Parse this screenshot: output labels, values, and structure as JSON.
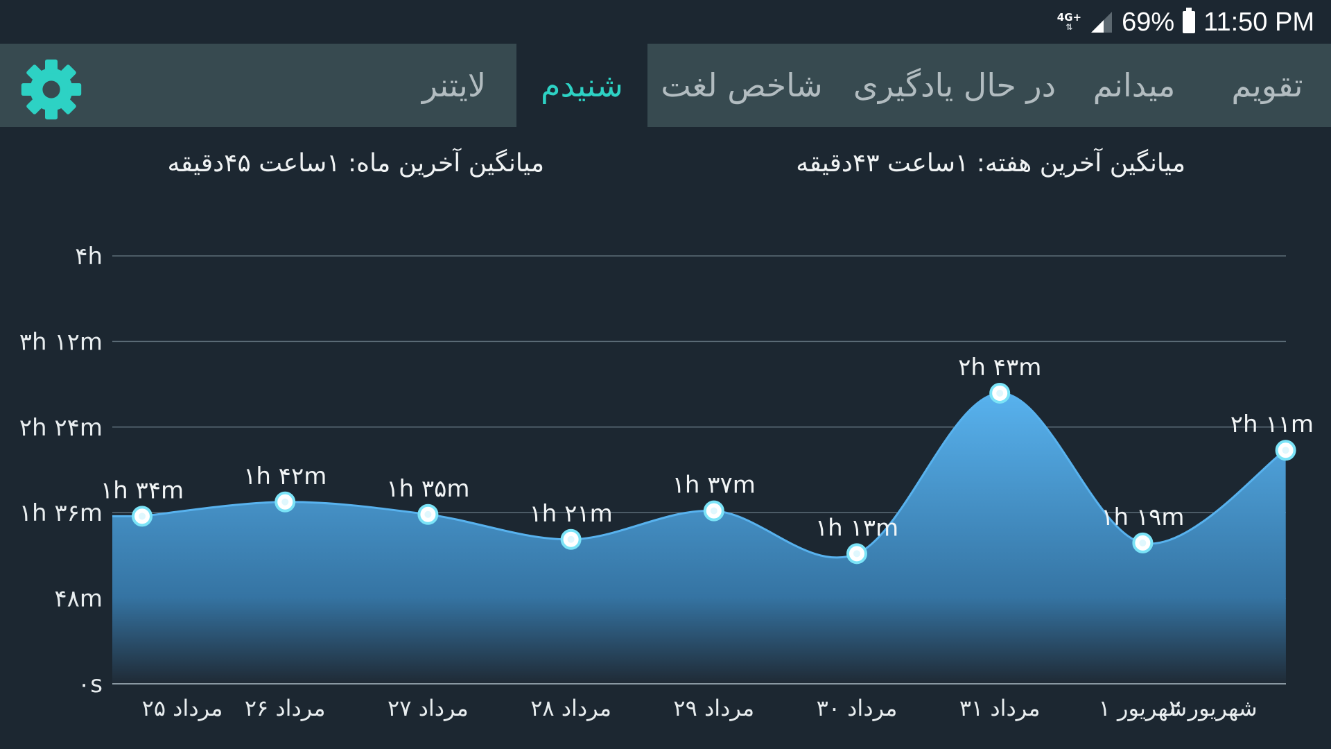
{
  "status_bar": {
    "network": "4G+",
    "battery": "69%",
    "time": "11:50 PM"
  },
  "tabs": [
    {
      "label": "تقویم",
      "active": false
    },
    {
      "label": "میدانم",
      "active": false
    },
    {
      "label": "در حال یادگیری",
      "active": false
    },
    {
      "label": "شاخص لغت",
      "active": false
    },
    {
      "label": "شنیدم",
      "active": true
    },
    {
      "label": "لایتنر",
      "active": false
    }
  ],
  "settings_icon": "gear-icon",
  "averages": {
    "week": "میانگین آخرین هفته: ۱ساعت  ۴۳دقیقه",
    "month": "میانگین آخرین ماه: ۱ساعت  ۴۵دقیقه"
  },
  "colors": {
    "background": "#1c2731",
    "tab_bar": "#374a50",
    "accent": "#2dd2c4",
    "area_top": "#58b2ee",
    "area_bottom": "#1f2a35",
    "grid": "#5d6e79",
    "point_fill": "#ffffff",
    "point_stroke": "#7be3f7"
  },
  "chart_data": {
    "type": "area",
    "y_unit": "minutes",
    "ylim": [
      0,
      240
    ],
    "y_ticks": [
      {
        "value": 0,
        "label": "۰s"
      },
      {
        "value": 48,
        "label": "۴۸m"
      },
      {
        "value": 96,
        "label": "۱h ۳۶m"
      },
      {
        "value": 144,
        "label": "۲h ۲۴m"
      },
      {
        "value": 192,
        "label": "۳h ۱۲m"
      },
      {
        "value": 240,
        "label": "۴h"
      }
    ],
    "categories": [
      "۲۵ مرداد",
      "۲۶ مرداد",
      "۲۷ مرداد",
      "۲۸ مرداد",
      "۲۹ مرداد",
      "۳۰ مرداد",
      "۳۱ مرداد",
      "۱ شهریور",
      "۲ شهریور"
    ],
    "values": [
      94,
      102,
      95,
      81,
      97,
      73,
      163,
      79,
      131
    ],
    "data_labels": [
      "۱h ۳۴m",
      "۱h ۴۲m",
      "۱h ۳۵m",
      "۱h ۲۱m",
      "۱h ۳۷m",
      "۱h ۱۳m",
      "۲h ۴۳m",
      "۱h ۱۹m",
      "۲h ۱۱m"
    ],
    "grid": true,
    "legend": "none"
  }
}
